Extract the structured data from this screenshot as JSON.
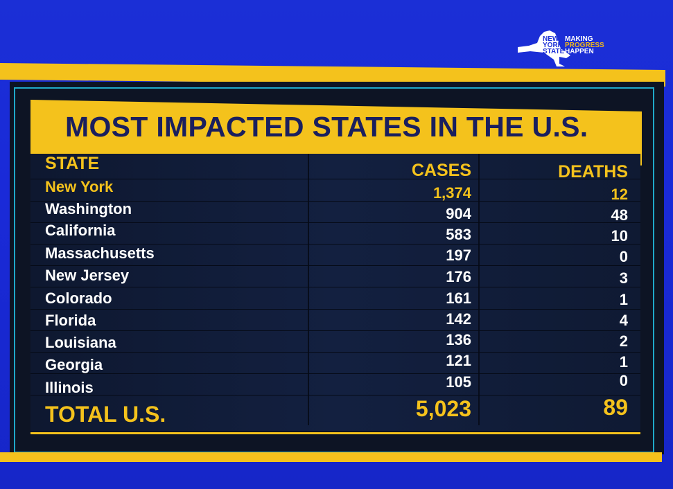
{
  "logo": {
    "left_lines": [
      "NEW",
      "YORK",
      "STATE"
    ],
    "right_lines": [
      "MAKING",
      "PROGRESS",
      "HAPPEN"
    ]
  },
  "title": "MOST IMPACTED STATES IN THE U.S.",
  "table": {
    "headers": {
      "state": "STATE",
      "cases": "CASES",
      "deaths": "DEATHS"
    },
    "rows": [
      {
        "state": "New York",
        "cases": "1,374",
        "deaths": "12"
      },
      {
        "state": "Washington",
        "cases": "904",
        "deaths": "48"
      },
      {
        "state": "California",
        "cases": "583",
        "deaths": "10"
      },
      {
        "state": "Massachusetts",
        "cases": "197",
        "deaths": "0"
      },
      {
        "state": "New Jersey",
        "cases": "176",
        "deaths": "3"
      },
      {
        "state": "Colorado",
        "cases": "161",
        "deaths": "1"
      },
      {
        "state": "Florida",
        "cases": "142",
        "deaths": "4"
      },
      {
        "state": "Louisiana",
        "cases": "136",
        "deaths": "2"
      },
      {
        "state": "Georgia",
        "cases": "121",
        "deaths": "1"
      },
      {
        "state": "Illinois",
        "cases": "105",
        "deaths": "0"
      }
    ],
    "total": {
      "label": "TOTAL U.S.",
      "cases": "5,023",
      "deaths": "89"
    }
  },
  "colors": {
    "background_blue": "#1b2fd6",
    "gold": "#f4c21c",
    "navy_text": "#1a1f5e",
    "panel": "#0d1424",
    "border_cyan": "#1fa9c9"
  }
}
